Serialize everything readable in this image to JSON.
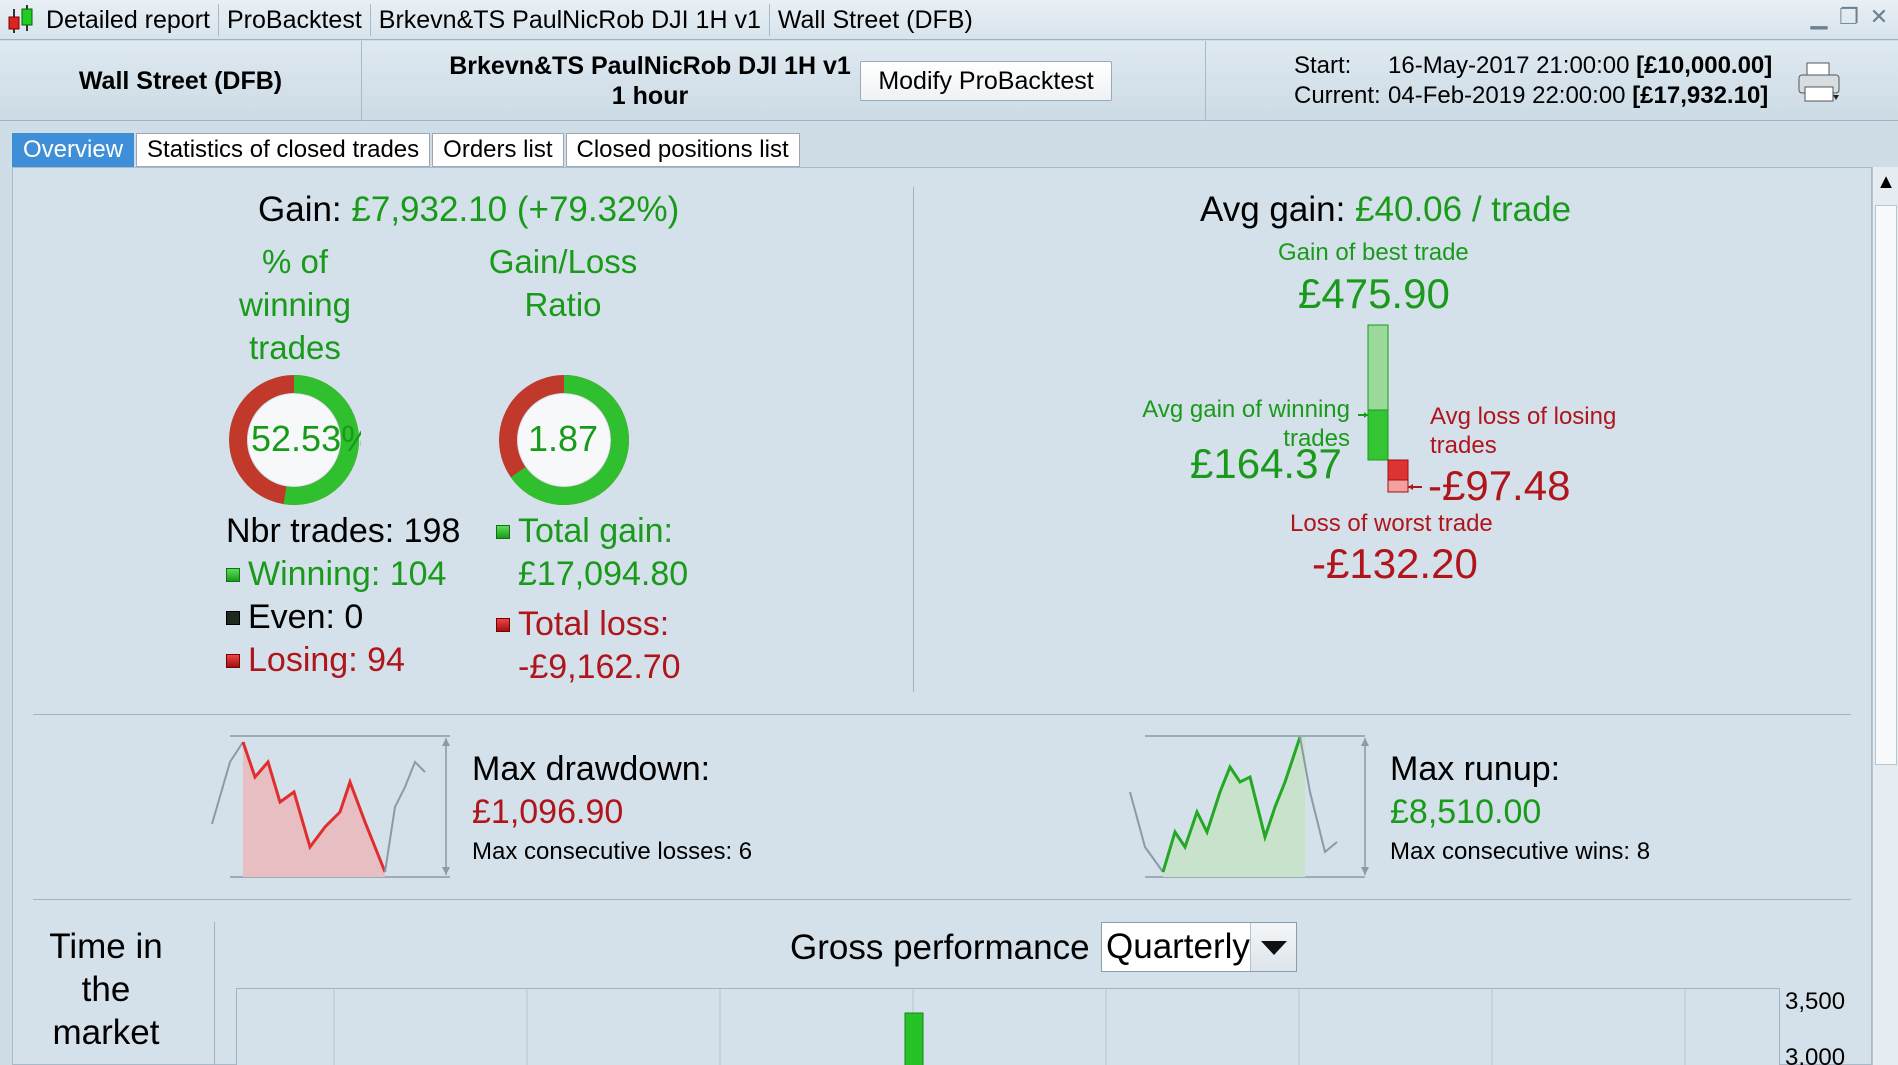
{
  "titlebar": {
    "segments": [
      "Detailed report",
      "ProBacktest",
      "Brkevn&TS PaulNicRob DJI 1H v1",
      "Wall Street (DFB)"
    ],
    "controls": [
      "minimize",
      "restore",
      "close"
    ]
  },
  "header": {
    "instrument": "Wall Street (DFB)",
    "strategy_name": "Brkevn&TS PaulNicRob DJI 1H v1",
    "timeframe": "1 hour",
    "modify_button": "Modify ProBacktest",
    "start_label": "Start:",
    "start_date": "16-May-2017 21:00:00",
    "start_capital": "[£10,000.00]",
    "current_label": "Current:",
    "current_date": "04-Feb-2019 22:00:00",
    "current_capital": "[£17,932.10]",
    "print_icon": "printer-icon"
  },
  "tabs": [
    "Overview",
    "Statistics of closed trades",
    "Orders list",
    "Closed positions list"
  ],
  "active_tab": "Overview",
  "overview": {
    "gain_label": "Gain:",
    "gain_value": "£7,932.10",
    "gain_pct": "(+79.32%)",
    "pct_winning_heading": "% of winning trades",
    "pct_winning_value": "52.53%",
    "pct_winning_fraction": 0.5253,
    "ratio_heading": "Gain/Loss Ratio",
    "ratio_value": "1.87",
    "ratio_fraction": 0.6516,
    "nbr_trades": "Nbr trades: 198",
    "winning": "Winning: 104",
    "even": "Even: 0",
    "losing": "Losing: 94",
    "total_gain_label": "Total gain:",
    "total_gain_value": "£17,094.80",
    "total_loss_label": "Total loss:",
    "total_loss_value": "-£9,162.70",
    "avg_gain_label": "Avg gain:",
    "avg_gain_value": "£40.06 / trade",
    "best_trade_label": "Gain of best trade",
    "best_trade_value": "£475.90",
    "avg_win_label": "Avg gain of winning trades",
    "avg_win_value": "£164.37",
    "avg_loss_label": "Avg loss of losing trades",
    "avg_loss_value": "-£97.48",
    "worst_trade_label": "Loss of worst trade",
    "worst_trade_value": "-£132.20",
    "max_drawdown_label": "Max drawdown:",
    "max_drawdown_value": "£1,096.90",
    "max_consec_losses": "Max consecutive losses: 6",
    "max_runup_label": "Max runup:",
    "max_runup_value": "£8,510.00",
    "max_consec_wins": "Max consecutive wins: 8",
    "time_in_market_label": "Time in the market",
    "gross_perf_label": "Gross performance",
    "period_select": "Quarterly",
    "y_ticks": [
      "3,500",
      "3,000"
    ]
  },
  "colors": {
    "gain": "#1a9a1a",
    "loss": "#b0151b",
    "tab_active": "#3f8fd8",
    "background": "#d4e1ea"
  }
}
